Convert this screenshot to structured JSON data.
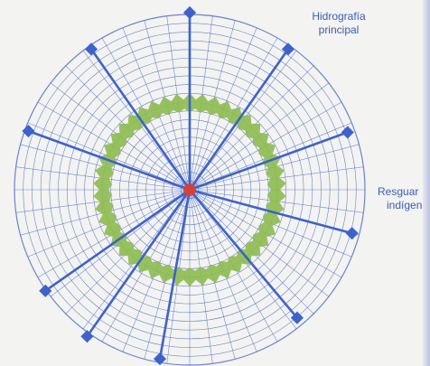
{
  "labels": {
    "top_line1": "Hidrografía",
    "top_line2": "principal",
    "right_line1": "Resguar",
    "right_line2": "indígen"
  },
  "colors": {
    "grid": "#3f5ec4",
    "spoke": "#3e62c9",
    "ring": "#8dbb4f",
    "center": "#e0402e",
    "background": "#f3f3f1"
  },
  "diagram": {
    "grid_rings": 20,
    "radial_divisions": 48,
    "spoke_count": 10,
    "ring_peaks": 46
  }
}
